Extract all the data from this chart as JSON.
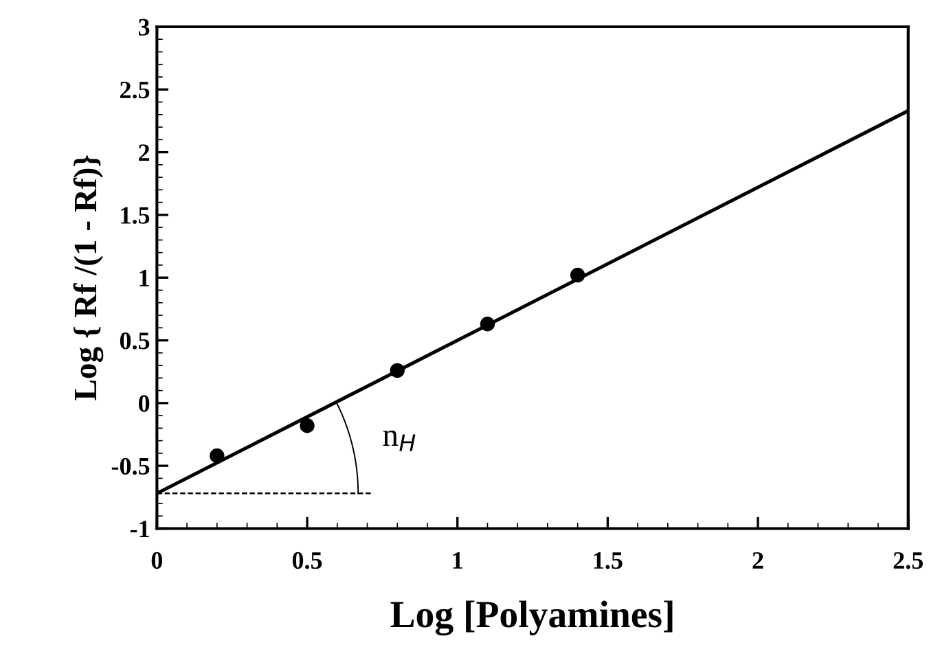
{
  "chart_data": {
    "type": "scatter",
    "xlabel": "Log [Polyamines]",
    "ylabel": "Log { Rf /(1 - Rf)}",
    "xlim": [
      0,
      2.5
    ],
    "ylim": [
      -1,
      3
    ],
    "xticks": [
      0,
      0.5,
      1,
      1.5,
      2,
      2.5
    ],
    "yticks": [
      -1,
      -0.5,
      0,
      0.5,
      1,
      1.5,
      2,
      2.5,
      3
    ],
    "grid": false,
    "legend": false,
    "series": [
      {
        "marker": "circle",
        "color": "#000000",
        "x": [
          0.2,
          0.5,
          0.8,
          1.1,
          1.4
        ],
        "values": [
          -0.42,
          -0.18,
          0.26,
          0.63,
          1.02
        ]
      },
      {
        "type": "line",
        "color": "#000000",
        "x": [
          0,
          2.5
        ],
        "values": [
          -0.72,
          2.33
        ],
        "line_style": "solid"
      },
      {
        "type": "line",
        "color": "#000000",
        "x": [
          0,
          0.72
        ],
        "values": [
          -0.72,
          -0.72
        ],
        "line_style": "dashed"
      }
    ],
    "annotations": [
      "n$_{H}$"
    ]
  }
}
